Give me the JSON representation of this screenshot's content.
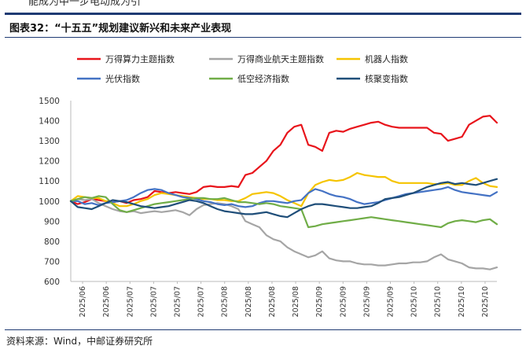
{
  "header": {
    "top_text": "能成为中一步电动成为引",
    "title": "图表32：“十五五”规划建议新兴和未来产业表现"
  },
  "source": "资料来源：Wind，中邮证券研究所",
  "chart_data": {
    "type": "line",
    "ylim": [
      600,
      1500
    ],
    "yticks": [
      600,
      700,
      800,
      900,
      1000,
      1100,
      1200,
      1300,
      1400,
      1500
    ],
    "xtick_labels": [
      "2025/06",
      "2025/06",
      "2025/07",
      "2025/07",
      "2025/07",
      "2025/07",
      "2025/08",
      "2025/08",
      "2025/08",
      "2025/08",
      "2025/09",
      "2025/09",
      "2025/09",
      "2025/09",
      "2025/10",
      "2025/10",
      "2025/10",
      "2025/10"
    ],
    "grid": false,
    "legend": "top",
    "series": [
      {
        "name": "万得算力主题指数",
        "color": "#e8141b",
        "values": [
          1000,
          985,
          995,
          1010,
          1005,
          1000,
          995,
          1000,
          990,
          1005,
          1010,
          1020,
          1050,
          1045,
          1040,
          1045,
          1040,
          1035,
          1045,
          1070,
          1075,
          1070,
          1070,
          1075,
          1070,
          1130,
          1140,
          1170,
          1200,
          1250,
          1280,
          1340,
          1370,
          1380,
          1280,
          1270,
          1250,
          1340,
          1350,
          1345,
          1360,
          1370,
          1380,
          1390,
          1395,
          1380,
          1370,
          1365,
          1365,
          1365,
          1365,
          1365,
          1340,
          1335,
          1300,
          1310,
          1320,
          1380,
          1400,
          1420,
          1425,
          1390
        ]
      },
      {
        "name": "万得商业航天主题指数",
        "color": "#a5a5a5",
        "values": [
          1000,
          1010,
          1005,
          1010,
          990,
          975,
          960,
          950,
          945,
          950,
          940,
          945,
          950,
          945,
          950,
          955,
          945,
          930,
          960,
          980,
          985,
          990,
          985,
          975,
          960,
          900,
          885,
          870,
          830,
          810,
          800,
          770,
          750,
          735,
          720,
          730,
          750,
          715,
          705,
          700,
          700,
          690,
          685,
          685,
          680,
          680,
          685,
          690,
          690,
          695,
          695,
          700,
          720,
          735,
          710,
          700,
          690,
          670,
          665,
          665,
          660,
          670
        ]
      },
      {
        "name": "机器人指数",
        "color": "#f5c400",
        "values": [
          1000,
          1025,
          1020,
          1015,
          1015,
          1000,
          990,
          975,
          975,
          985,
          1000,
          1010,
          1030,
          1040,
          1035,
          1030,
          1025,
          1020,
          1015,
          1010,
          1010,
          1005,
          1005,
          1000,
          1000,
          1015,
          1035,
          1040,
          1045,
          1040,
          1025,
          1005,
          990,
          975,
          1040,
          1080,
          1095,
          1105,
          1100,
          1105,
          1120,
          1140,
          1130,
          1125,
          1120,
          1120,
          1100,
          1090,
          1090,
          1090,
          1090,
          1090,
          1085,
          1085,
          1090,
          1080,
          1080,
          1100,
          1115,
          1090,
          1075,
          1070
        ]
      },
      {
        "name": "光伏指数",
        "color": "#4472c4",
        "values": [
          1000,
          1000,
          985,
          990,
          980,
          990,
          995,
          1000,
          1005,
          1020,
          1040,
          1055,
          1060,
          1055,
          1040,
          1030,
          1020,
          1015,
          1010,
          1000,
          995,
          985,
          980,
          985,
          975,
          970,
          975,
          990,
          1000,
          1000,
          995,
          990,
          1000,
          1005,
          1040,
          1060,
          1050,
          1035,
          1025,
          1020,
          1010,
          995,
          985,
          990,
          995,
          1005,
          1015,
          1025,
          1035,
          1040,
          1045,
          1050,
          1055,
          1060,
          1070,
          1055,
          1045,
          1040,
          1035,
          1030,
          1025,
          1045
        ]
      },
      {
        "name": "低空经济指数",
        "color": "#70ad47",
        "values": [
          1000,
          1010,
          1020,
          1015,
          1025,
          1020,
          985,
          955,
          945,
          955,
          965,
          975,
          985,
          990,
          995,
          1000,
          1005,
          1010,
          1015,
          1015,
          1010,
          1010,
          1015,
          1005,
          995,
          995,
          990,
          985,
          990,
          985,
          975,
          970,
          965,
          960,
          870,
          875,
          885,
          890,
          895,
          900,
          905,
          910,
          915,
          920,
          915,
          910,
          905,
          900,
          895,
          890,
          885,
          880,
          875,
          870,
          890,
          900,
          905,
          900,
          895,
          905,
          910,
          885
        ]
      },
      {
        "name": "核聚变指数",
        "color": "#1f4e79",
        "values": [
          1000,
          970,
          965,
          960,
          975,
          990,
          1005,
          1000,
          995,
          985,
          975,
          970,
          965,
          970,
          975,
          985,
          995,
          1005,
          1000,
          990,
          975,
          960,
          950,
          945,
          940,
          935,
          935,
          940,
          945,
          935,
          925,
          920,
          940,
          960,
          975,
          985,
          985,
          980,
          975,
          970,
          965,
          965,
          970,
          975,
          990,
          1010,
          1015,
          1020,
          1030,
          1040,
          1055,
          1070,
          1080,
          1090,
          1095,
          1085,
          1090,
          1085,
          1080,
          1090,
          1100,
          1110
        ]
      }
    ]
  }
}
